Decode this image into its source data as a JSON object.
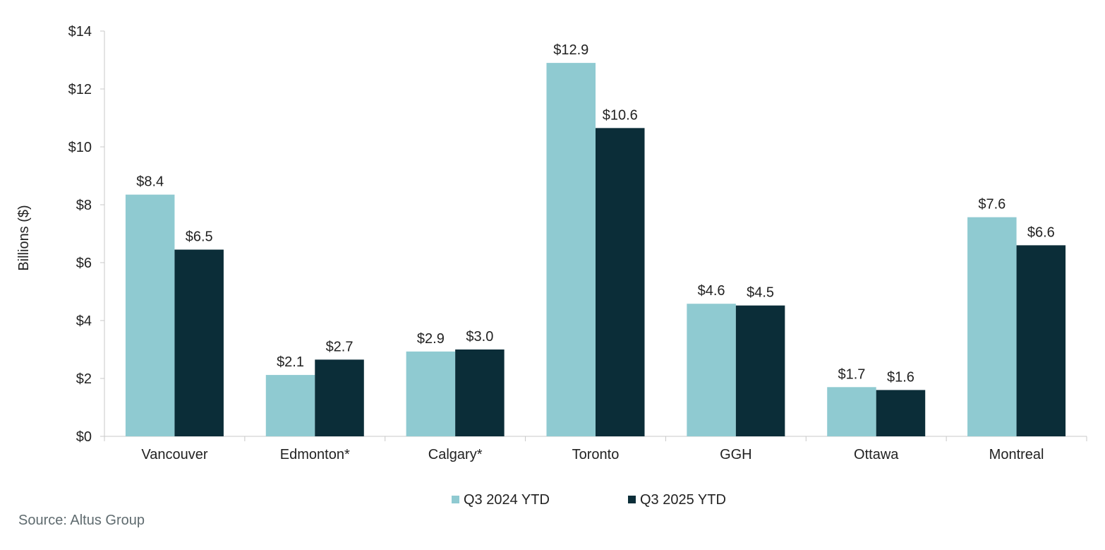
{
  "chart_data": {
    "type": "bar",
    "title": "",
    "xlabel": "",
    "ylabel": "Billions ($)",
    "ylim": [
      0,
      14
    ],
    "yticks": [
      0,
      2,
      4,
      6,
      8,
      10,
      12,
      14
    ],
    "ytick_labels": [
      "$0",
      "$2",
      "$4",
      "$6",
      "$8",
      "$10",
      "$12",
      "$14"
    ],
    "categories": [
      "Vancouver",
      "Edmonton*",
      "Calgary*",
      "Toronto",
      "GGH",
      "Ottawa",
      "Montreal"
    ],
    "series": [
      {
        "name": "Q3 2024 YTD",
        "color": "#8fcad1",
        "values": [
          8.35,
          2.12,
          2.93,
          12.9,
          4.58,
          1.7,
          7.57
        ],
        "labels": [
          "$8.4",
          "$2.1",
          "$2.9",
          "$12.9",
          "$4.6",
          "$1.7",
          "$7.6"
        ]
      },
      {
        "name": "Q3 2025 YTD",
        "color": "#0b2d38",
        "values": [
          6.45,
          2.65,
          3.0,
          10.65,
          4.52,
          1.6,
          6.6
        ],
        "labels": [
          "$6.5",
          "$2.7",
          "$3.0",
          "$10.6",
          "$4.5",
          "$1.6",
          "$6.6"
        ]
      }
    ],
    "legend_position": "bottom-center",
    "grid": false
  },
  "footer": {
    "source": "Source:  Altus Group"
  },
  "colors": {
    "axis": "#c8c8c8",
    "text": "#222222",
    "source_text": "#5f6b6f"
  }
}
